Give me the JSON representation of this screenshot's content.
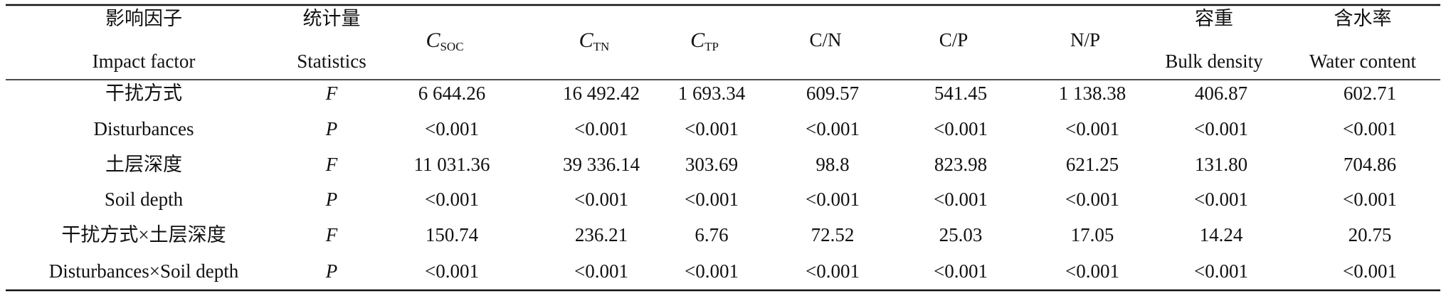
{
  "table": {
    "header": [
      {
        "top": "影响因子",
        "bottom": "Impact factor"
      },
      {
        "top": "统计量",
        "bottom": "Statistics"
      },
      {
        "main": "C",
        "sub": "SOC"
      },
      {
        "main": "C",
        "sub": "TN"
      },
      {
        "main": "C",
        "sub": "TP"
      },
      {
        "main": "C/N"
      },
      {
        "main": "C/P"
      },
      {
        "main": "N/P"
      },
      {
        "top": "容重",
        "bottom": "Bulk density"
      },
      {
        "top": "含水率",
        "bottom": "Water content"
      }
    ],
    "rows": [
      {
        "factor": "干扰方式",
        "stat": "F",
        "values": [
          "6 644.26",
          "16 492.42",
          "1 693.34",
          "609.57",
          "541.45",
          "1 138.38",
          "406.87",
          "602.71"
        ]
      },
      {
        "factor": "Disturbances",
        "stat": "P",
        "values": [
          "<0.001",
          "<0.001",
          "<0.001",
          "<0.001",
          "<0.001",
          "<0.001",
          "<0.001",
          "<0.001"
        ]
      },
      {
        "factor": "土层深度",
        "stat": "F",
        "values": [
          "11 031.36",
          "39 336.14",
          "303.69",
          "98.8",
          "823.98",
          "621.25",
          "131.80",
          "704.86"
        ]
      },
      {
        "factor": "Soil depth",
        "stat": "P",
        "values": [
          "<0.001",
          "<0.001",
          "<0.001",
          "<0.001",
          "<0.001",
          "<0.001",
          "<0.001",
          "<0.001"
        ]
      },
      {
        "factor": "干扰方式×土层深度",
        "stat": "F",
        "values": [
          "150.74",
          "236.21",
          "6.76",
          "72.52",
          "25.03",
          "17.05",
          "14.24",
          "20.75"
        ]
      },
      {
        "factor": "Disturbances×Soil depth",
        "stat": "P",
        "values": [
          "<0.001",
          "<0.001",
          "<0.001",
          "<0.001",
          "<0.001",
          "<0.001",
          "<0.001",
          "<0.001"
        ]
      }
    ]
  }
}
